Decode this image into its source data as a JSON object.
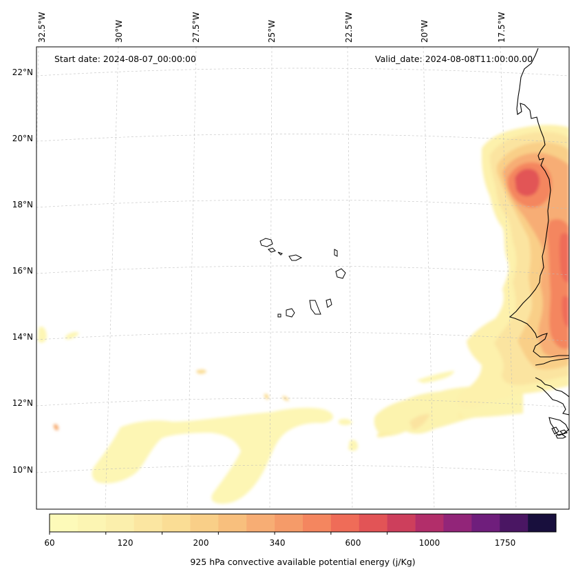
{
  "map": {
    "start_date": "Start date: 2024-08-07_00:00:00",
    "valid_date": "Valid_date: 2024-08-08T11:00:00.00",
    "lon_labels": [
      "32.5°W",
      "30°W",
      "27.5°W",
      "25°W",
      "22.5°W",
      "20°W",
      "17.5°W"
    ],
    "lat_labels": [
      "22°N",
      "20°N",
      "18°N",
      "16°N",
      "14°N",
      "12°N",
      "10°N"
    ],
    "field": "convective available potential energy",
    "region": "Cape Verde Islands and West African coast (Senegal, Mauritania)"
  },
  "colorbar": {
    "title": "925 hPa convective available potential energy (j/Kg)",
    "tick_labels": [
      "60",
      "120",
      "200",
      "340",
      "600",
      "1000",
      "1750"
    ],
    "colors": [
      "#fdfab9",
      "#fcf5b3",
      "#fbefac",
      "#fbe6a1",
      "#fadd95",
      "#f9cf88",
      "#f8bf7d",
      "#f7ad74",
      "#f59b69",
      "#f4865f",
      "#ef6c58",
      "#e25456",
      "#cd3f5c",
      "#b22e6a",
      "#922579",
      "#6f1e7c",
      "#4a1663",
      "#180f3d"
    ]
  }
}
